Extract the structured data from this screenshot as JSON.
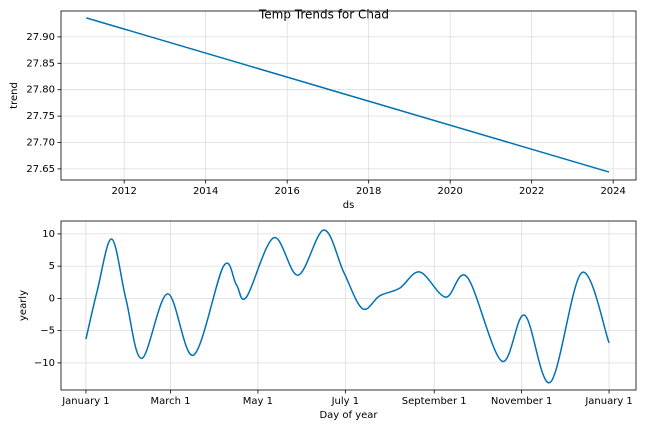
{
  "chart_data": [
    {
      "type": "line",
      "title": "Temp Trends for Chad",
      "xlabel": "ds",
      "ylabel": "trend",
      "x": [
        2011.07,
        2023.9
      ],
      "series": [
        {
          "color": "#0072b2",
          "values": [
            27.936,
            27.644
          ]
        }
      ],
      "xlim": [
        2010.45,
        2024.56
      ],
      "xticks": [
        2012,
        2014,
        2016,
        2018,
        2020,
        2022,
        2024
      ],
      "ylim": [
        27.629,
        27.949
      ],
      "yticks": [
        27.65,
        {
          "value": 27.7,
          "label": "27.70"
        },
        27.75,
        {
          "value": 27.8,
          "label": "27.80"
        },
        27.85,
        {
          "value": 27.9,
          "label": "27.90"
        }
      ],
      "grid": true
    },
    {
      "type": "line",
      "xlabel": "Day of year",
      "ylabel": "yearly",
      "x": [
        0,
        8,
        18,
        28,
        39,
        57,
        75,
        96,
        105,
        112,
        131,
        148,
        166,
        180,
        193,
        205,
        219,
        233,
        251,
        266,
        290,
        306,
        324,
        346,
        365
      ],
      "series": [
        {
          "color": "#0072b2",
          "values": [
            -6.3,
            1.3,
            9.2,
            -0.2,
            -9.3,
            0.7,
            -8.8,
            5.0,
            2.1,
            0.2,
            9.4,
            3.6,
            10.6,
            4.0,
            -1.6,
            0.4,
            1.6,
            4.1,
            0.2,
            3.3,
            -9.7,
            -2.6,
            -13.0,
            4.0,
            -6.9
          ]
        }
      ],
      "xlim": [
        -17.4,
        383.8
      ],
      "xticks": [
        {
          "value": 0,
          "label": "January 1"
        },
        {
          "value": 59,
          "label": "March 1"
        },
        {
          "value": 120,
          "label": "May 1"
        },
        {
          "value": 181,
          "label": "July 1"
        },
        {
          "value": 243,
          "label": "September 1"
        },
        {
          "value": 304,
          "label": "November 1"
        },
        {
          "value": 365,
          "label": "January 1"
        }
      ],
      "ylim": [
        -14.2,
        12.0
      ],
      "yticks": [
        {
          "value": -10,
          "label": "−10"
        },
        {
          "value": -5,
          "label": "−5"
        },
        0,
        5,
        10
      ],
      "grid": true
    }
  ]
}
